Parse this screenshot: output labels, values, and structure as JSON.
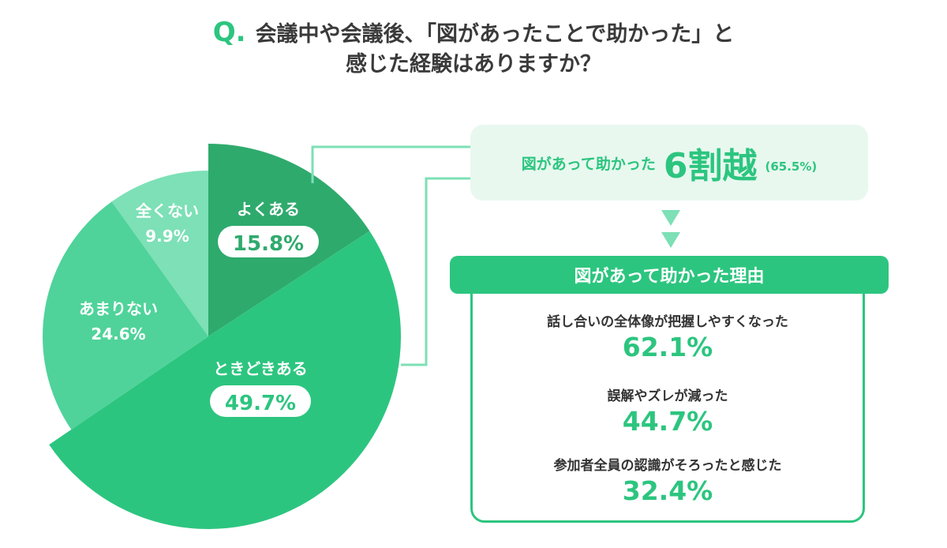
{
  "title": {
    "q_mark": "Q.",
    "line1": "会議中や会議後、「図があったことで助かった」と",
    "line2": "感じた経験はありますか？"
  },
  "chart_data": {
    "type": "pie",
    "slices": [
      {
        "label": "よくある",
        "value": 15.8,
        "value_label": "15.8%",
        "color": "#2faa6d"
      },
      {
        "label": "ときどきある",
        "value": 49.7,
        "value_label": "49.7%",
        "color": "#2cc57f"
      },
      {
        "label": "あまりない",
        "value": 24.6,
        "value_label": "24.6%",
        "color": "#4fd39a"
      },
      {
        "label": "全くない",
        "value": 9.9,
        "value_label": "9.9%",
        "color": "#7de0b6"
      }
    ]
  },
  "summary": {
    "text": "図があって助かった",
    "big": "6割越",
    "pct": "(65.5%)"
  },
  "reasons": {
    "header": "図があって助かった理由",
    "items": [
      {
        "label": "話し合いの全体像が把握しやすくなった",
        "value": "62.1%"
      },
      {
        "label": "誤解やズレが減った",
        "value": "44.7%"
      },
      {
        "label": "参加者全員の認識がそろったと感じた",
        "value": "32.4%"
      }
    ]
  },
  "colors": {
    "accent": "#2cc57f",
    "summary_bg": "#e8f8ef",
    "connector": "#7de0b6"
  }
}
